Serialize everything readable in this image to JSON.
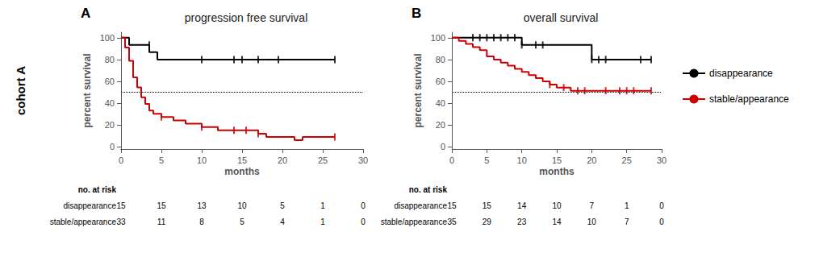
{
  "chart_data": [
    {
      "type": "step",
      "panel_label": "A",
      "cohort_label": "cohort A",
      "title": "progression free survival",
      "x_label": "months",
      "y_label": "percent survival",
      "xlim": [
        0,
        30
      ],
      "ylim": [
        -2,
        105
      ],
      "xticks": [
        0,
        5,
        10,
        15,
        20,
        25,
        30
      ],
      "yticks": [
        0,
        20,
        40,
        60,
        80,
        100
      ],
      "grid": false,
      "reference_line": 50,
      "series": [
        {
          "name": "disappearance",
          "color": "#000000",
          "x": [
            0,
            1.0,
            1.0,
            3.5,
            3.5,
            4.5,
            4.5,
            26.5
          ],
          "values": [
            100,
            100,
            93.3,
            93.3,
            86.7,
            86.7,
            80.0,
            80.0
          ],
          "censored": {
            "x": [
              3.5,
              10.0,
              14.0,
              15.0,
              17.0,
              19.5,
              26.5
            ],
            "values": [
              93.3,
              80.0,
              80.0,
              80.0,
              80.0,
              80.0,
              80.0
            ]
          }
        },
        {
          "name": "stable/appearance",
          "color": "#cc0000",
          "x": [
            0,
            0.5,
            0.5,
            1.0,
            1.0,
            1.5,
            1.5,
            2.0,
            2.0,
            2.5,
            2.5,
            3.0,
            3.0,
            3.5,
            3.5,
            4.0,
            4.0,
            5.0,
            5.0,
            6.5,
            6.5,
            8.0,
            8.0,
            10.0,
            10.0,
            12.0,
            12.0,
            14.0,
            14.0,
            15.5,
            15.5,
            17.0,
            17.0,
            18.0,
            18.0,
            19.0,
            19.0,
            20.0,
            20.0,
            21.5,
            21.5,
            22.5,
            22.5,
            24.0,
            24.0,
            25.5,
            25.5,
            26.5
          ],
          "values": [
            100,
            100,
            90.9,
            90.9,
            78.8,
            78.8,
            63.6,
            63.6,
            54.5,
            54.5,
            45.5,
            45.5,
            39.4,
            39.4,
            33.3,
            33.3,
            30.3,
            30.3,
            27.3,
            27.3,
            24.2,
            24.2,
            21.2,
            21.2,
            18.2,
            18.2,
            15.2,
            15.2,
            15.2,
            15.2,
            15.2,
            15.2,
            12.1,
            12.1,
            9.1,
            9.1,
            9.1,
            9.1,
            9.1,
            9.1,
            6.1,
            6.1,
            9.1,
            9.1,
            9.1,
            9.1,
            9.1,
            9.1
          ],
          "censored": {
            "x": [
              5.0,
              10.0,
              14.0,
              15.5,
              17.0,
              26.5
            ],
            "values": [
              27.3,
              18.2,
              15.2,
              15.2,
              12.1,
              9.1
            ]
          }
        }
      ],
      "at_risk": {
        "header": "no. at risk",
        "x": [
          0,
          5,
          10,
          15,
          20,
          25,
          30
        ],
        "rows": [
          {
            "name": "disappearance",
            "values": [
              15,
              15,
              13,
              10,
              5,
              1,
              0
            ]
          },
          {
            "name": "stable/appearance",
            "values": [
              33,
              11,
              8,
              5,
              4,
              1,
              0
            ]
          }
        ]
      }
    },
    {
      "type": "step",
      "panel_label": "B",
      "title": "overall survival",
      "x_label": "months",
      "y_label": "percent survival",
      "xlim": [
        0,
        30
      ],
      "ylim": [
        -2,
        105
      ],
      "xticks": [
        0,
        5,
        10,
        15,
        20,
        25,
        30
      ],
      "yticks": [
        0,
        20,
        40,
        60,
        80,
        100
      ],
      "grid": false,
      "legend": "right",
      "reference_line": 50,
      "series": [
        {
          "name": "disappearance",
          "color": "#000000",
          "x": [
            0,
            10.0,
            10.0,
            20.0,
            20.0,
            28.5
          ],
          "values": [
            100,
            100,
            93.3,
            93.3,
            80.0,
            80.0
          ],
          "censored": {
            "x": [
              3.0,
              4.0,
              5.0,
              6.0,
              7.0,
              8.0,
              9.0,
              10.0,
              12.0,
              13.0,
              20.0,
              21.0,
              22.0,
              27.0,
              28.5
            ],
            "values": [
              100,
              100,
              100,
              100,
              100,
              100,
              100,
              93.3,
              93.3,
              93.3,
              80.0,
              80.0,
              80.0,
              80.0,
              80.0
            ]
          }
        },
        {
          "name": "stable/appearance",
          "color": "#cc0000",
          "x": [
            0,
            1.0,
            1.0,
            2.0,
            2.0,
            3.0,
            3.0,
            4.0,
            4.0,
            5.0,
            5.0,
            6.0,
            6.0,
            7.0,
            7.0,
            8.0,
            8.0,
            9.0,
            9.0,
            10.0,
            10.0,
            11.0,
            11.0,
            12.0,
            12.0,
            13.0,
            13.0,
            14.0,
            14.0,
            15.0,
            15.0,
            16.0,
            16.0,
            17.0,
            17.0,
            18.0,
            18.0,
            19.0,
            19.0,
            28.5
          ],
          "values": [
            100,
            100,
            97.1,
            97.1,
            94.3,
            94.3,
            91.4,
            91.4,
            88.6,
            88.6,
            82.9,
            82.9,
            80.0,
            80.0,
            77.1,
            77.1,
            74.3,
            74.3,
            71.4,
            71.4,
            68.6,
            68.6,
            65.7,
            65.7,
            62.9,
            62.9,
            60.0,
            60.0,
            57.1,
            57.1,
            54.3,
            54.3,
            54.3,
            54.3,
            51.4,
            51.4,
            51.4,
            51.4,
            51.4,
            51.4
          ],
          "censored": {
            "x": [
              14.0,
              16.0,
              18.0,
              19.0,
              22.0,
              24.0,
              25.0,
              26.0,
              28.5
            ],
            "values": [
              57.1,
              54.3,
              51.4,
              51.4,
              51.4,
              51.4,
              51.4,
              51.4,
              51.4
            ]
          }
        }
      ],
      "at_risk": {
        "header": "no. at risk",
        "x": [
          0,
          5,
          10,
          15,
          20,
          25,
          30
        ],
        "rows": [
          {
            "name": "disappearance",
            "values": [
              15,
              15,
              14,
              10,
              7,
              1,
              0
            ]
          },
          {
            "name": "stable/appearance",
            "values": [
              35,
              29,
              23,
              14,
              10,
              7,
              0
            ]
          }
        ]
      }
    }
  ]
}
